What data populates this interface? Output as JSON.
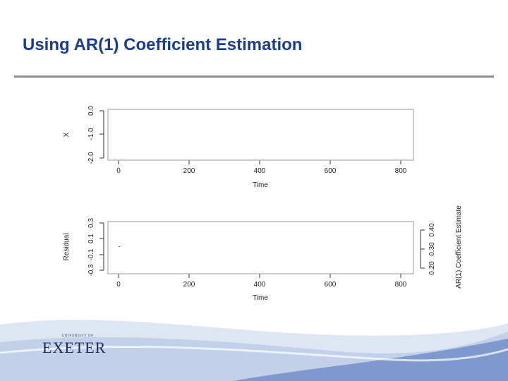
{
  "slide": {
    "title": "Using AR(1) Coefficient Estimation"
  },
  "logo": {
    "top_text": "UNIVERSITY OF",
    "word": "EXETER"
  },
  "colors": {
    "title": "#1a3d8f",
    "rule": "#8d8f94",
    "footer_wave": "#7f99cf"
  },
  "chart_data": [
    {
      "type": "line",
      "xlabel": "Time",
      "ylabel": "X",
      "xlim": [
        0,
        800
      ],
      "ylim": [
        -2.0,
        0.0
      ],
      "xticks": [
        0,
        200,
        400,
        600,
        800
      ],
      "xtick_labels": [
        "0",
        "200",
        "400",
        "600",
        "800"
      ],
      "yticks": [
        -2.0,
        -1.0,
        0.0
      ],
      "ytick_labels": [
        "-2.0",
        "-1.0",
        "0.0"
      ],
      "series": []
    },
    {
      "type": "scatter",
      "xlabel": "Time",
      "ylabel": "Residual",
      "y2label": "AR(1) Coefficient Estimate",
      "xlim": [
        0,
        800
      ],
      "ylim": [
        -0.3,
        0.3
      ],
      "xticks": [
        0,
        200,
        400,
        600,
        800
      ],
      "xtick_labels": [
        "0",
        "200",
        "400",
        "600",
        "800"
      ],
      "yticks": [
        -0.3,
        -0.1,
        0.1,
        0.3
      ],
      "ytick_labels": [
        "-0.3",
        "-0.1",
        "0.1",
        "0.3"
      ],
      "y2lim": [
        0.2,
        0.4
      ],
      "y2ticks": [
        0.2,
        0.3,
        0.4
      ],
      "y2tick_labels": [
        "0.20",
        "0.30",
        "0.40"
      ],
      "series": [
        {
          "x": [
            2
          ],
          "y": [
            0.0
          ]
        }
      ]
    }
  ]
}
